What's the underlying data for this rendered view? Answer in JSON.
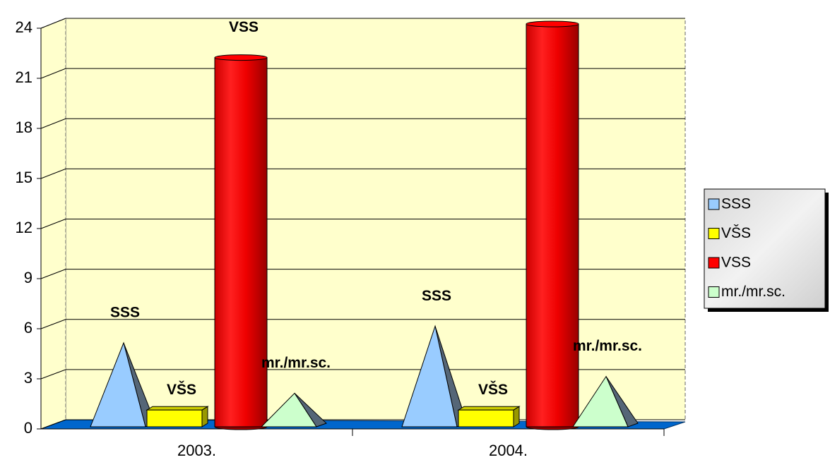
{
  "chart_data": {
    "type": "bar3d",
    "categories": [
      "2003.",
      "2004."
    ],
    "series": [
      {
        "name": "SSS",
        "color": "#99ccff",
        "shape": "pyramid",
        "values": [
          5,
          6
        ]
      },
      {
        "name": "VŠS",
        "color": "#ffff00",
        "shape": "box",
        "values": [
          1,
          1
        ]
      },
      {
        "name": "VSS",
        "color": "#ff0000",
        "shape": "cylinder",
        "values": [
          22,
          24
        ]
      },
      {
        "name": "mr./mr.sc.",
        "color": "#ccffcc",
        "shape": "pyramid",
        "values": [
          2,
          3
        ]
      }
    ],
    "ylim": [
      0,
      24
    ],
    "yticks": [
      0,
      3,
      6,
      9,
      12,
      15,
      18,
      21,
      24
    ],
    "grid": true,
    "legend": "right"
  }
}
